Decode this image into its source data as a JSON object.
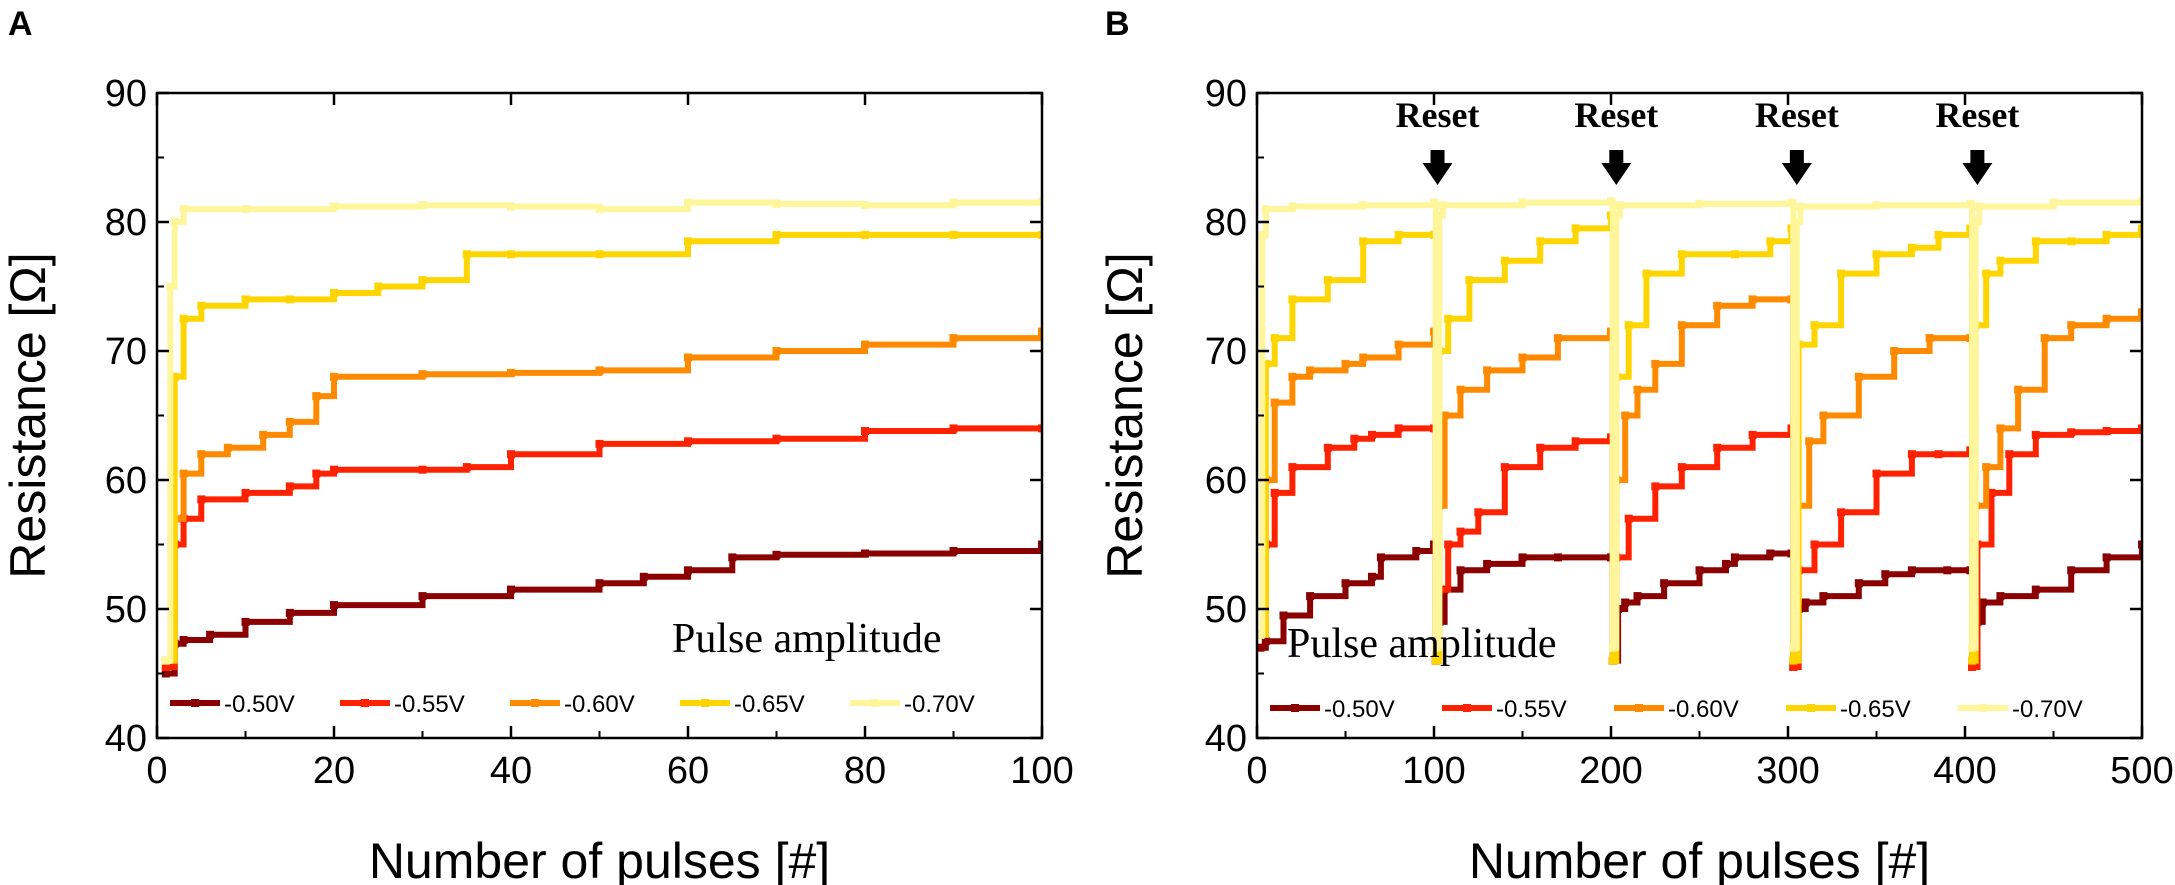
{
  "chart_data": [
    {
      "type": "line",
      "panel": "A",
      "xlabel": "Number of pulses [#]",
      "ylabel": "Resistance [Ω]",
      "xlim": [
        0,
        100
      ],
      "ylim": [
        40,
        90
      ],
      "xticks": [
        0,
        20,
        40,
        60,
        80,
        100
      ],
      "yticks": [
        40,
        50,
        60,
        70,
        80,
        90
      ],
      "legend_title": "Pulse amplitude",
      "series": [
        {
          "name": "-0.50V",
          "color": "#8b0000",
          "x": [
            1,
            2,
            3,
            6,
            10,
            15,
            20,
            30,
            40,
            50,
            55,
            60,
            65,
            70,
            80,
            90,
            100
          ],
          "values": [
            45,
            47.3,
            47.6,
            48,
            49,
            49.7,
            50.3,
            51,
            51.5,
            52,
            52.5,
            53,
            54,
            54.2,
            54.3,
            54.5,
            55
          ]
        },
        {
          "name": "-0.55V",
          "color": "#ff2200",
          "x": [
            1,
            2,
            3,
            5,
            10,
            15,
            18,
            20,
            30,
            35,
            40,
            50,
            60,
            70,
            80,
            90,
            100
          ],
          "values": [
            45.5,
            55,
            57,
            58.5,
            59,
            59.5,
            60.5,
            60.8,
            60.8,
            61,
            62,
            62.8,
            63,
            63.2,
            63.8,
            64,
            64
          ]
        },
        {
          "name": "-0.60V",
          "color": "#ff8a00",
          "x": [
            1,
            2,
            3,
            5,
            8,
            12,
            15,
            18,
            20,
            30,
            40,
            50,
            60,
            70,
            80,
            90,
            100
          ],
          "values": [
            46,
            57,
            60.5,
            62,
            62.5,
            63.5,
            64.5,
            66.5,
            68,
            68.2,
            68.3,
            68.5,
            69.5,
            70,
            70.5,
            71,
            71.5
          ]
        },
        {
          "name": "-0.65V",
          "color": "#ffd500",
          "x": [
            1,
            2,
            3,
            5,
            10,
            15,
            20,
            25,
            30,
            35,
            40,
            50,
            60,
            70,
            80,
            90,
            100
          ],
          "values": [
            46,
            68,
            72.5,
            73.5,
            74,
            74,
            74.5,
            75,
            75.5,
            77.5,
            77.5,
            77.5,
            78.5,
            79,
            79,
            79,
            79
          ]
        },
        {
          "name": "-0.70V",
          "color": "#fff59a",
          "x": [
            1,
            1.5,
            2,
            3,
            10,
            20,
            30,
            40,
            50,
            60,
            70,
            80,
            90,
            100
          ],
          "values": [
            46,
            75,
            80,
            81,
            81,
            81.2,
            81.3,
            81.2,
            81,
            81.5,
            81.4,
            81.3,
            81.5,
            81.6
          ]
        }
      ]
    },
    {
      "type": "line",
      "panel": "B",
      "xlabel": "Number of pulses [#]",
      "ylabel": "Resistance [Ω]",
      "xlim": [
        0,
        500
      ],
      "ylim": [
        40,
        90
      ],
      "xticks": [
        0,
        100,
        200,
        300,
        400,
        500
      ],
      "yticks": [
        40,
        50,
        60,
        70,
        80,
        90
      ],
      "legend_title": "Pulse amplitude",
      "annotations": [
        {
          "text": "Reset",
          "x": 102
        },
        {
          "text": "Reset",
          "x": 203
        },
        {
          "text": "Reset",
          "x": 305
        },
        {
          "text": "Reset",
          "x": 407
        }
      ],
      "series": [
        {
          "name": "-0.50V",
          "color": "#8b0000",
          "x": [
            2,
            5,
            15,
            30,
            50,
            65,
            70,
            90,
            100,
            101,
            103,
            106,
            115,
            130,
            150,
            170,
            200,
            201,
            204,
            208,
            215,
            230,
            250,
            265,
            270,
            290,
            302,
            303,
            306,
            310,
            320,
            340,
            355,
            370,
            390,
            403,
            404,
            407,
            410,
            420,
            440,
            460,
            480,
            500
          ],
          "values": [
            47,
            47.5,
            49.5,
            51,
            52,
            52.5,
            54,
            54.5,
            55,
            46,
            49,
            51.5,
            53,
            53.5,
            54,
            54,
            54,
            46,
            50,
            50.5,
            51,
            52,
            53,
            53.5,
            54,
            54.3,
            54.3,
            45.5,
            50,
            50.5,
            51,
            52,
            52.7,
            53,
            53,
            53,
            45.5,
            49,
            50.5,
            51,
            51.5,
            53,
            54,
            55
          ]
        },
        {
          "name": "-0.55V",
          "color": "#ff2200",
          "x": [
            2,
            5,
            10,
            20,
            40,
            55,
            65,
            80,
            100,
            101,
            103,
            108,
            115,
            125,
            140,
            160,
            180,
            200,
            201,
            203,
            210,
            225,
            240,
            260,
            280,
            302,
            303,
            306,
            315,
            330,
            350,
            370,
            385,
            403,
            404,
            407,
            415,
            425,
            440,
            460,
            480,
            500
          ],
          "values": [
            48,
            55,
            59,
            61,
            62.5,
            63.2,
            63.5,
            64,
            64,
            46,
            51.5,
            55,
            56,
            57.5,
            61,
            62.5,
            63,
            63.3,
            46,
            54,
            57,
            59.5,
            61,
            62.5,
            63.5,
            64,
            45.5,
            53,
            55,
            57.5,
            60.5,
            62,
            62,
            62.3,
            45.5,
            55,
            59,
            62,
            63.5,
            63.7,
            63.8,
            64
          ]
        },
        {
          "name": "-0.60V",
          "color": "#ff8a00",
          "x": [
            2,
            5,
            10,
            20,
            30,
            50,
            60,
            80,
            100,
            101,
            103,
            106,
            115,
            130,
            150,
            170,
            200,
            201,
            203,
            208,
            215,
            225,
            240,
            260,
            280,
            302,
            303,
            305,
            312,
            320,
            340,
            360,
            380,
            403,
            404,
            406,
            412,
            420,
            430,
            445,
            460,
            480,
            500
          ],
          "values": [
            48,
            60,
            66,
            68,
            68.5,
            69,
            69.5,
            70.5,
            71.5,
            46,
            58,
            65,
            67,
            68.5,
            69.5,
            71,
            71.5,
            46,
            60,
            65,
            67,
            69,
            72,
            73.5,
            74,
            74,
            46,
            58,
            63,
            65,
            68,
            70,
            71,
            71,
            46,
            58,
            61,
            64,
            67,
            71,
            72,
            72.5,
            73
          ]
        },
        {
          "name": "-0.65V",
          "color": "#ffd500",
          "x": [
            2,
            5,
            10,
            20,
            40,
            60,
            80,
            100,
            101,
            103,
            108,
            120,
            140,
            160,
            180,
            200,
            201,
            203,
            210,
            220,
            240,
            270,
            290,
            302,
            303,
            306,
            315,
            330,
            350,
            370,
            385,
            403,
            404,
            406,
            412,
            420,
            440,
            460,
            480,
            500
          ],
          "values": [
            48,
            69,
            71,
            74,
            75.5,
            78.5,
            79,
            79,
            46,
            70,
            72.5,
            75.5,
            77,
            78.5,
            79.5,
            80.5,
            46,
            68,
            72,
            76,
            77.5,
            77.5,
            78.5,
            79.5,
            46,
            70.5,
            72,
            76,
            77.5,
            78,
            79,
            79.5,
            46,
            72,
            76,
            77,
            78.5,
            78.5,
            79,
            79.5
          ]
        },
        {
          "name": "-0.70V",
          "color": "#fff59a",
          "x": [
            2,
            3,
            5,
            20,
            60,
            100,
            101,
            103,
            105,
            150,
            200,
            201,
            203,
            205,
            250,
            302,
            303,
            305,
            307,
            350,
            403,
            404,
            406,
            408,
            450,
            500
          ],
          "values": [
            48,
            79,
            81,
            81.2,
            81.3,
            81.5,
            47,
            80.5,
            81.3,
            81.5,
            81.6,
            47,
            80.5,
            81.3,
            81.4,
            81.5,
            47,
            80,
            81.2,
            81.3,
            81.4,
            47,
            80,
            81.2,
            81.5,
            81.6
          ]
        }
      ]
    }
  ]
}
